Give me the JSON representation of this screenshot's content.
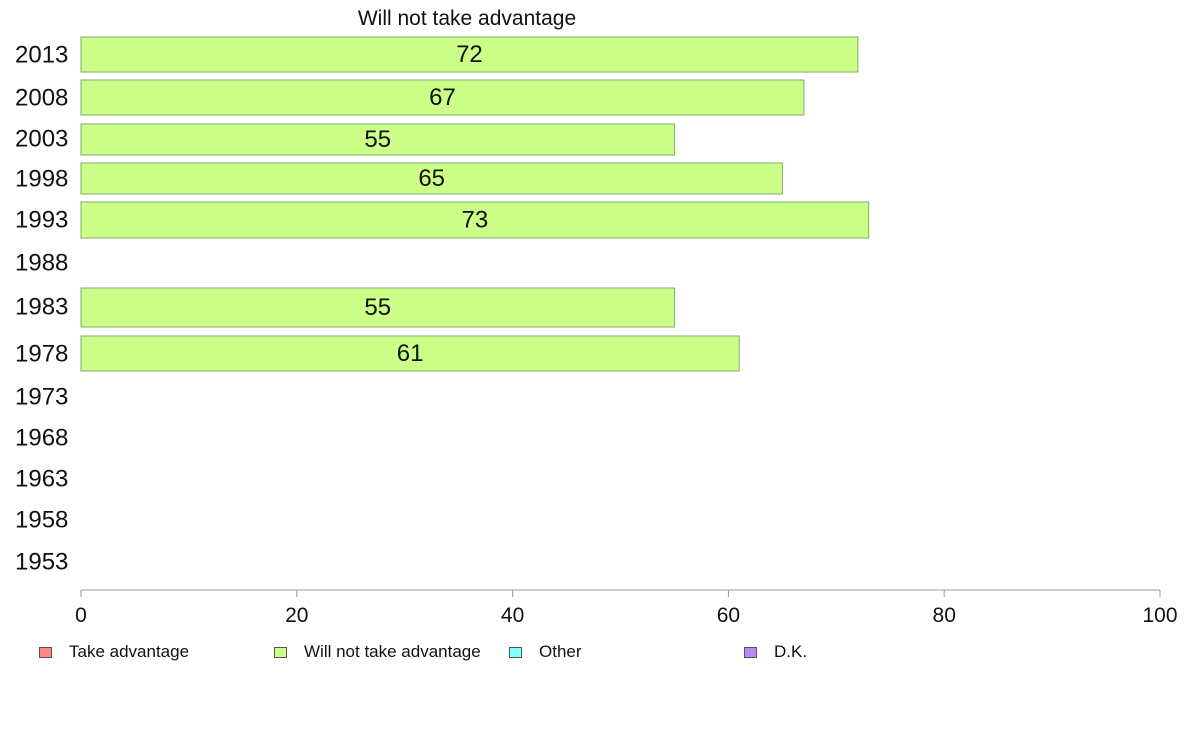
{
  "chart_data": {
    "type": "bar",
    "orientation": "horizontal",
    "title": "Will not take advantage",
    "categories": [
      "2013",
      "2008",
      "2003",
      "1998",
      "1993",
      "1988",
      "1983",
      "1978",
      "1973",
      "1968",
      "1963",
      "1958",
      "1953"
    ],
    "series": [
      {
        "name": "Will not take advantage",
        "color": "#ccff88",
        "values": [
          72,
          67,
          55,
          65,
          73,
          null,
          55,
          61,
          null,
          null,
          null,
          null,
          null
        ]
      }
    ],
    "xlim": [
      0,
      100
    ],
    "xticks": [
      0,
      20,
      40,
      60,
      80,
      100
    ],
    "xlabel": "",
    "ylabel": "",
    "grid": false,
    "legend": {
      "position": "bottom",
      "items": [
        {
          "label": "Take advantage",
          "color": "#ff8888"
        },
        {
          "label": "Will not take advantage",
          "color": "#ccff88"
        },
        {
          "label": "Other",
          "color": "#88ffff"
        },
        {
          "label": "D.K.",
          "color": "#bb88ff"
        }
      ]
    }
  }
}
